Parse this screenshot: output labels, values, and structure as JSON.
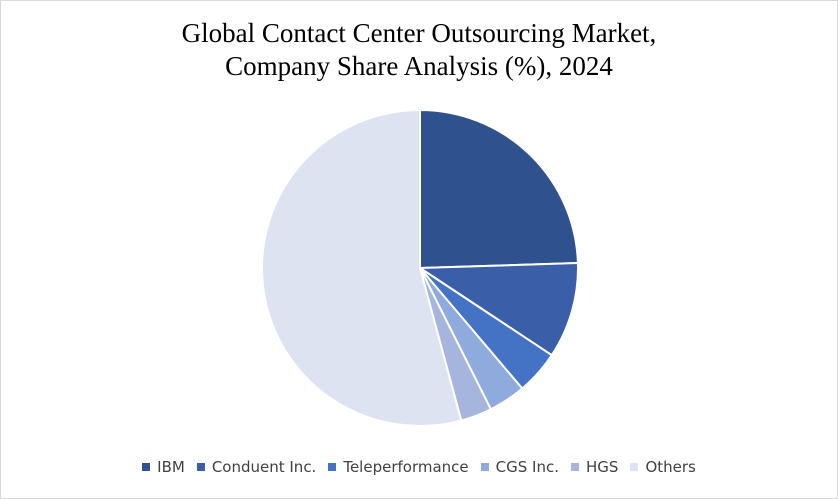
{
  "chart_data": {
    "type": "pie",
    "title_lines": [
      "Global Contact Center Outsourcing Market,",
      "Company Share Analysis (%), 2024"
    ],
    "slices": [
      {
        "label": "IBM",
        "value": 24.5,
        "color": "#2f528f"
      },
      {
        "label": "Conduent Inc.",
        "value": 9.8,
        "color": "#3a5ea8"
      },
      {
        "label": "Teleperformance",
        "value": 4.5,
        "color": "#4472c4"
      },
      {
        "label": "CGS Inc.",
        "value": 3.8,
        "color": "#8faadc"
      },
      {
        "label": "HGS",
        "value": 3.2,
        "color": "#a5b5de"
      },
      {
        "label": "Others",
        "value": 54.2,
        "color": "#dde3f0"
      }
    ],
    "start_angle_deg": 0,
    "direction": "clockwise",
    "legend_position": "bottom"
  }
}
